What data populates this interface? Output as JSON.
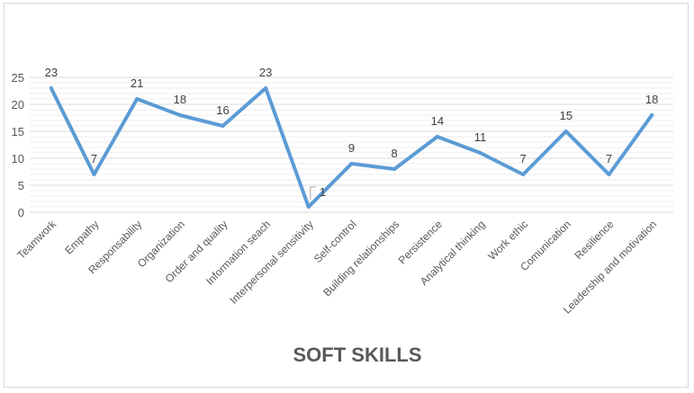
{
  "chart_data": {
    "type": "line",
    "title": "SOFT SKILLS",
    "xlabel": "",
    "ylabel": "",
    "categories": [
      "Teamwork",
      "Empathy",
      "Responsability",
      "Organization",
      "Order and quality",
      "Information seach",
      "Interpersonal sensitivity",
      "Self-control",
      "Building relationships",
      "Persistence",
      "Analytical thinking",
      "Work ethic",
      "Comunication",
      "Resilience",
      "Leadership and motivation"
    ],
    "series": [
      {
        "values": [
          23,
          7,
          21,
          18,
          16,
          23,
          1,
          9,
          8,
          14,
          11,
          7,
          15,
          7,
          18
        ]
      }
    ],
    "ylim": [
      0,
      25
    ],
    "yticks": [
      "0",
      "5",
      "10",
      "15",
      "20",
      "25"
    ],
    "grid": true,
    "data_labels": true,
    "legend": "none",
    "colors": {
      "line": "#5b9bd5",
      "grid": "#d9d9d9",
      "text": "#595959"
    }
  }
}
